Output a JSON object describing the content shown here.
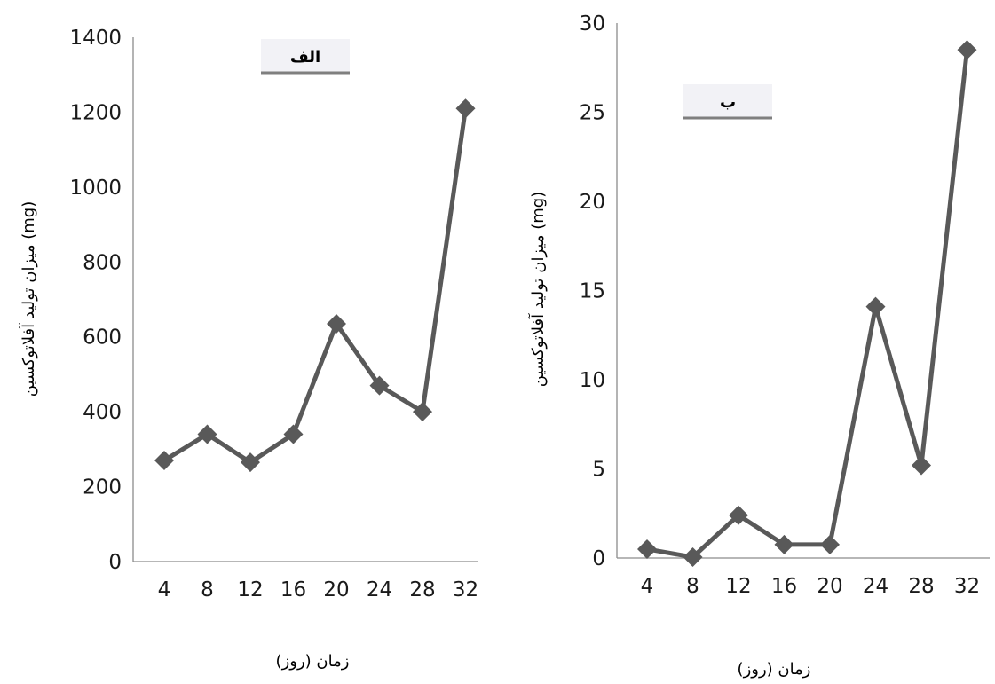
{
  "chart_data": [
    {
      "type": "line",
      "panel_label": "الف",
      "x": [
        4,
        8,
        12,
        16,
        20,
        24,
        28,
        32
      ],
      "values": [
        270,
        340,
        265,
        340,
        635,
        470,
        400,
        1210
      ],
      "xlabel": "زمان (روز)",
      "ylabel": "میزان تولید آفلاتوکسین (mg)",
      "ylim": [
        0,
        1400
      ],
      "yticks": [
        0,
        200,
        400,
        600,
        800,
        1000,
        1200,
        1400
      ],
      "grid": false,
      "color": "#595959"
    },
    {
      "type": "line",
      "panel_label": "ب",
      "x": [
        4,
        8,
        12,
        16,
        20,
        24,
        28,
        32
      ],
      "values": [
        0.5,
        0.05,
        2.4,
        0.75,
        0.75,
        14.1,
        5.2,
        28.5
      ],
      "xlabel": "زمان (روز)",
      "ylabel": "میزان تولید آفلاتوکسین (mg)",
      "ylim": [
        0,
        30
      ],
      "yticks": [
        0,
        5,
        10,
        15,
        20,
        25,
        30
      ],
      "grid": false,
      "color": "#595959"
    }
  ]
}
